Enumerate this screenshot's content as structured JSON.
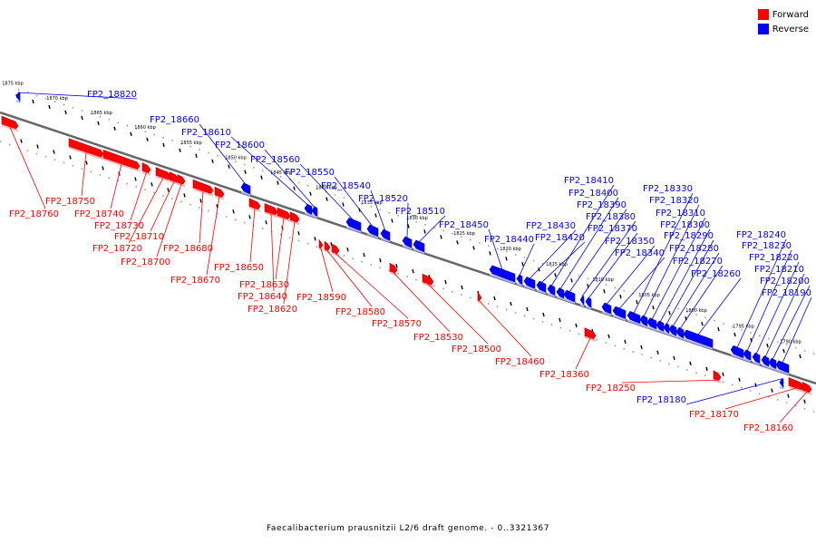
{
  "colors": {
    "forward": "#ff0000",
    "reverse": "#0000ff",
    "backbone": "#666666"
  },
  "legend": {
    "forward": "Forward",
    "reverse": "Reverse"
  },
  "caption": "Faecalibacterium prausnitzii L2/6 draft genome. - 0..3321367",
  "ticks": [
    "1875 kbp",
    "1870 kbp",
    "1865 kbp",
    "1860 kbp",
    "1855 kbp",
    "1850 kbp",
    "1845 kbp",
    "1840 kbp",
    "1835 kbp",
    "1830 kbp",
    "1825 kbp",
    "1820 kbp",
    "1815 kbp",
    "1810 kbp",
    "1805 kbp",
    "1800 kbp",
    "1795 kbp",
    "1790 kbp"
  ],
  "genes": [
    {
      "name": "FP2_18820",
      "strand": "reverse"
    },
    {
      "name": "FP2_18760",
      "strand": "forward"
    },
    {
      "name": "FP2_18750",
      "strand": "forward"
    },
    {
      "name": "FP2_18740",
      "strand": "forward"
    },
    {
      "name": "FP2_18730",
      "strand": "forward"
    },
    {
      "name": "FP2_18720",
      "strand": "forward"
    },
    {
      "name": "FP2_18710",
      "strand": "forward"
    },
    {
      "name": "FP2_18700",
      "strand": "forward"
    },
    {
      "name": "FP2_18680",
      "strand": "forward"
    },
    {
      "name": "FP2_18670",
      "strand": "forward"
    },
    {
      "name": "FP2_18660",
      "strand": "reverse"
    },
    {
      "name": "FP2_18650",
      "strand": "forward"
    },
    {
      "name": "FP2_18640",
      "strand": "forward"
    },
    {
      "name": "FP2_18630",
      "strand": "forward"
    },
    {
      "name": "FP2_18620",
      "strand": "forward"
    },
    {
      "name": "FP2_18610",
      "strand": "reverse"
    },
    {
      "name": "FP2_18600",
      "strand": "reverse"
    },
    {
      "name": "FP2_18590",
      "strand": "forward"
    },
    {
      "name": "FP2_18580",
      "strand": "forward"
    },
    {
      "name": "FP2_18570",
      "strand": "forward"
    },
    {
      "name": "FP2_18560",
      "strand": "reverse"
    },
    {
      "name": "FP2_18550",
      "strand": "reverse"
    },
    {
      "name": "FP2_18540",
      "strand": "reverse"
    },
    {
      "name": "FP2_18530",
      "strand": "forward"
    },
    {
      "name": "FP2_18520",
      "strand": "reverse"
    },
    {
      "name": "FP2_18510",
      "strand": "reverse"
    },
    {
      "name": "FP2_18500",
      "strand": "forward"
    },
    {
      "name": "FP2_18460",
      "strand": "forward"
    },
    {
      "name": "FP2_18450",
      "strand": "reverse"
    },
    {
      "name": "FP2_18440",
      "strand": "reverse"
    },
    {
      "name": "FP2_18430",
      "strand": "reverse"
    },
    {
      "name": "FP2_18420",
      "strand": "reverse"
    },
    {
      "name": "FP2_18410",
      "strand": "reverse"
    },
    {
      "name": "FP2_18400",
      "strand": "reverse"
    },
    {
      "name": "FP2_18390",
      "strand": "reverse"
    },
    {
      "name": "FP2_18380",
      "strand": "reverse"
    },
    {
      "name": "FP2_18370",
      "strand": "reverse"
    },
    {
      "name": "FP2_18360",
      "strand": "forward"
    },
    {
      "name": "FP2_18350",
      "strand": "reverse"
    },
    {
      "name": "FP2_18340",
      "strand": "reverse"
    },
    {
      "name": "FP2_18330",
      "strand": "reverse"
    },
    {
      "name": "FP2_18320",
      "strand": "reverse"
    },
    {
      "name": "FP2_18310",
      "strand": "reverse"
    },
    {
      "name": "FP2_18300",
      "strand": "reverse"
    },
    {
      "name": "FP2_18290",
      "strand": "reverse"
    },
    {
      "name": "FP2_18280",
      "strand": "reverse"
    },
    {
      "name": "FP2_18270",
      "strand": "reverse"
    },
    {
      "name": "FP2_18260",
      "strand": "reverse"
    },
    {
      "name": "FP2_18250",
      "strand": "forward"
    },
    {
      "name": "FP2_18240",
      "strand": "reverse"
    },
    {
      "name": "FP2_18230",
      "strand": "reverse"
    },
    {
      "name": "FP2_18220",
      "strand": "reverse"
    },
    {
      "name": "FP2_18210",
      "strand": "reverse"
    },
    {
      "name": "FP2_18200",
      "strand": "reverse"
    },
    {
      "name": "FP2_18190",
      "strand": "reverse"
    },
    {
      "name": "FP2_18180",
      "strand": "reverse"
    },
    {
      "name": "FP2_18170",
      "strand": "forward"
    },
    {
      "name": "FP2_18160",
      "strand": "forward"
    }
  ]
}
